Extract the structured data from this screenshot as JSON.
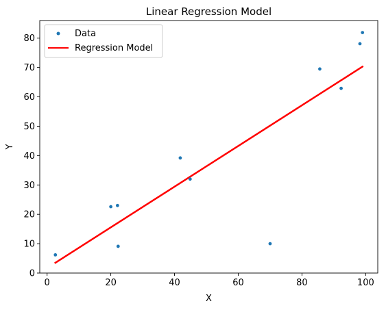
{
  "chart_data": {
    "type": "scatter",
    "title": "Linear Regression Model",
    "xlabel": "X",
    "ylabel": "Y",
    "xlim": [
      -2.3,
      103.8
    ],
    "ylim": [
      0,
      86
    ],
    "xticks": [
      0,
      20,
      40,
      60,
      80,
      100
    ],
    "yticks": [
      0,
      10,
      20,
      30,
      40,
      50,
      60,
      70,
      80
    ],
    "grid": false,
    "legend_position": "upper-left",
    "series": [
      {
        "name": "Data",
        "kind": "scatter",
        "color": "#1f77b4",
        "points": [
          [
            2.6,
            6.2
          ],
          [
            20.0,
            22.6
          ],
          [
            22.1,
            23.0
          ],
          [
            22.3,
            9.1
          ],
          [
            41.8,
            39.2
          ],
          [
            44.9,
            32.0
          ],
          [
            70.0,
            10.0
          ],
          [
            85.6,
            69.5
          ],
          [
            92.3,
            62.9
          ],
          [
            98.2,
            78.1
          ],
          [
            99.0,
            81.9
          ]
        ]
      },
      {
        "name": "Regression Model",
        "kind": "line",
        "color": "#ff0000",
        "points": [
          [
            2.6,
            3.5
          ],
          [
            99.0,
            70.3
          ]
        ]
      }
    ]
  }
}
